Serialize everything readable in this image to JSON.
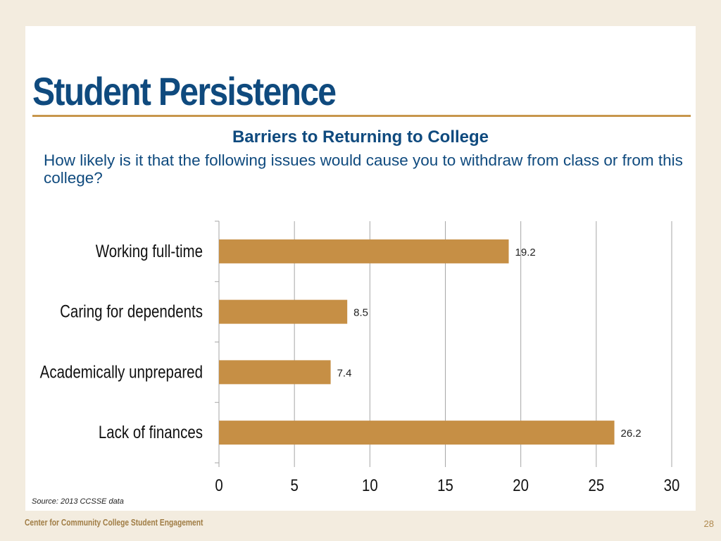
{
  "slide": {
    "title": "Student Persistence",
    "source": "Source: 2013 CCSSE data",
    "footer_org": "Center for Community College Student Engagement",
    "page_number": "28"
  },
  "colors": {
    "title": "#0f4a7e",
    "bar": "#c68f45",
    "rule": "#c7964c",
    "background": "#f3ecdf"
  },
  "chart_data": {
    "type": "bar",
    "orientation": "horizontal",
    "title": "Barriers to Returning to College",
    "subtitle": "How likely is it that the following issues would cause you to withdraw from class or from this college?",
    "categories": [
      "Working full-time",
      "Caring for dependents",
      "Academically unprepared",
      "Lack of finances"
    ],
    "values": [
      19.2,
      8.5,
      7.4,
      26.2
    ],
    "value_labels": [
      "19.2",
      "8.5",
      "7.4",
      "26.2"
    ],
    "xlim": [
      0,
      30
    ],
    "xticks": [
      0,
      5,
      10,
      15,
      20,
      25,
      30
    ],
    "xtick_labels": [
      "0",
      "5",
      "10",
      "15",
      "20",
      "25",
      "30"
    ],
    "grid": true,
    "legend": "none"
  }
}
